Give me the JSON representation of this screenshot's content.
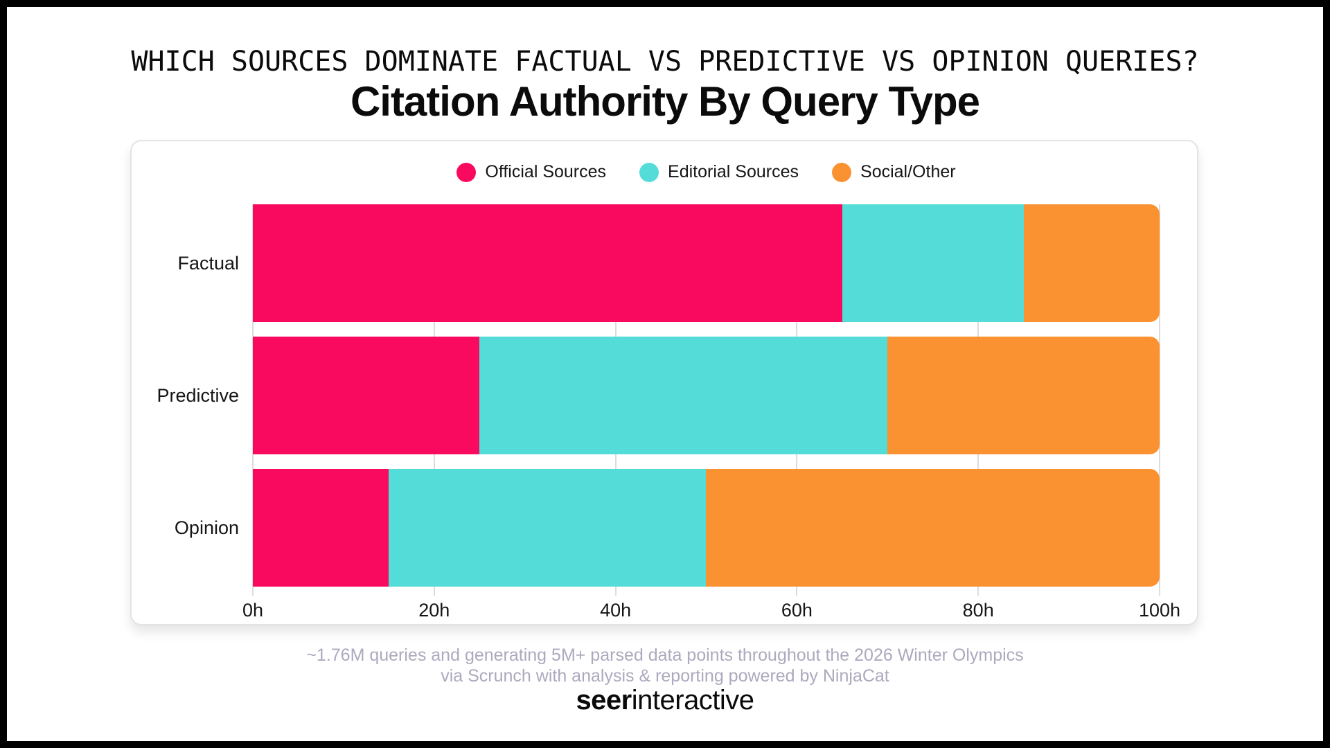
{
  "header": {
    "kicker": "WHICH SOURCES DOMINATE FACTUAL VS PREDICTIVE VS OPINION QUERIES?",
    "title": "Citation Authority By Query Type"
  },
  "chart_data": {
    "type": "bar",
    "stacked": true,
    "orientation": "horizontal",
    "title": "Citation Authority By Query Type",
    "categories": [
      "Factual",
      "Predictive",
      "Opinion"
    ],
    "series": [
      {
        "name": "Official Sources",
        "color": "#FA0A5F",
        "values": [
          65,
          25,
          15
        ]
      },
      {
        "name": "Editorial Sources",
        "color": "#54DCD8",
        "values": [
          20,
          45,
          35
        ]
      },
      {
        "name": "Social/Other",
        "color": "#FB9232",
        "values": [
          15,
          30,
          50
        ]
      }
    ],
    "x_ticks": [
      "0h",
      "20h",
      "40h",
      "60h",
      "80h",
      "100h"
    ],
    "xlim": [
      0,
      100
    ],
    "legend_position": "top",
    "grid": "vertical"
  },
  "footer": {
    "line1": "~1.76M queries and generating 5M+ parsed data points throughout the 2026 Winter Olympics",
    "line2": "via Scrunch with analysis & reporting powered by NinjaCat",
    "logo_bold": "seer",
    "logo_light": "interactive"
  },
  "colors": {
    "frame": "#000000",
    "card_border": "#e3e3e3",
    "gridline": "#dcdcdc",
    "footer_text": "#ada9be",
    "text": "#111111"
  }
}
